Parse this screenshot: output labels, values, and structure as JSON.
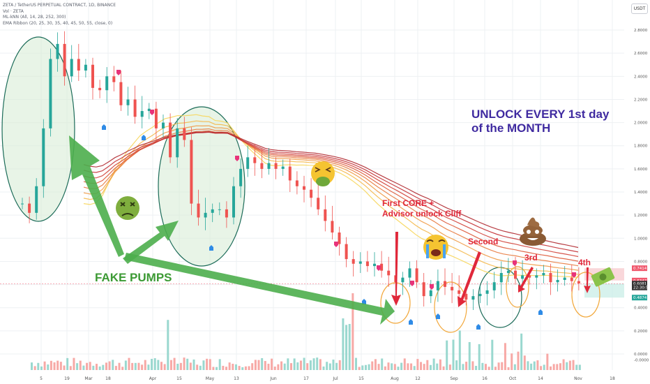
{
  "legend": {
    "symbol": "ZETA / TetherUS PERPETUAL CONTRACT, 1D, BINANCE",
    "vol": "Vol · ZETA",
    "knn": "ML-kNN (All, 14, 28, 252, 300)",
    "ema": "EMA Ribbon (20, 25, 30, 35, 40, 45, 50, 55, close, 0)"
  },
  "currency": "USDT",
  "annotations": {
    "unlock": "UNLOCK EVERY 1st day\nof the MONTH",
    "fake_pumps": "FAKE PUMPS",
    "first_cliff": "First CORE +\nAdvisor unlock Cliff",
    "second": "Second",
    "third": "3rd",
    "fourth": "4th"
  },
  "chart_data": {
    "type": "candlestick",
    "x_labels": [
      "5",
      "19",
      "Mar",
      "18",
      "Apr",
      "15",
      "May",
      "13",
      "Jun",
      "17",
      "Jul",
      "15",
      "Aug",
      "12",
      "Sep",
      "16",
      "Oct",
      "14",
      "Nov",
      "18"
    ],
    "y_ticks": [
      "2.8000",
      "2.6000",
      "2.4000",
      "2.2000",
      "2.0000",
      "1.8000",
      "1.6000",
      "1.4000",
      "1.2000",
      "1.0000",
      "0.8000",
      "0.6000",
      "0.4000",
      "0.2000",
      "0.0000",
      "-0.0000"
    ],
    "price_labels": [
      {
        "text": "0.7414",
        "color": "#f0576c"
      },
      {
        "text": "0.6347",
        "color": "#f0576c"
      },
      {
        "text": "0.6081",
        "color": "#333333"
      },
      {
        "text": "22:30:50",
        "color": "#333333"
      },
      {
        "text": "0.4874",
        "color": "#26a69a"
      }
    ],
    "close_path": [
      1.3,
      1.22,
      1.45,
      1.95,
      2.55,
      2.68,
      2.4,
      2.55,
      2.45,
      2.5,
      2.3,
      2.28,
      2.4,
      2.35,
      2.15,
      2.2,
      2.05,
      2.1,
      2.12,
      1.95,
      2.0,
      1.7,
      1.95,
      1.85,
      1.3,
      1.18,
      1.22,
      1.25,
      1.25,
      1.18,
      1.45,
      1.6,
      1.7,
      1.65,
      1.6,
      1.65,
      1.6,
      1.62,
      1.5,
      1.45,
      1.42,
      1.35,
      1.25,
      1.15,
      1.05,
      0.95,
      0.82,
      0.78,
      0.8,
      0.76,
      0.78,
      0.72,
      0.68,
      0.62,
      0.66,
      0.74,
      0.62,
      0.5,
      0.55,
      0.63,
      0.58,
      0.55,
      0.52,
      0.47,
      0.5,
      0.52,
      0.55,
      0.62,
      0.7,
      0.72,
      0.65,
      0.68,
      0.66,
      0.68,
      0.7,
      0.62,
      0.64,
      0.66,
      0.63,
      0.61
    ],
    "grid": true
  },
  "colors": {
    "up": "#26a69a",
    "down": "#ef5350",
    "annotation_green": "#4cae4c",
    "annotation_red": "#e0283a",
    "annotation_blue": "#3f2aa0"
  }
}
